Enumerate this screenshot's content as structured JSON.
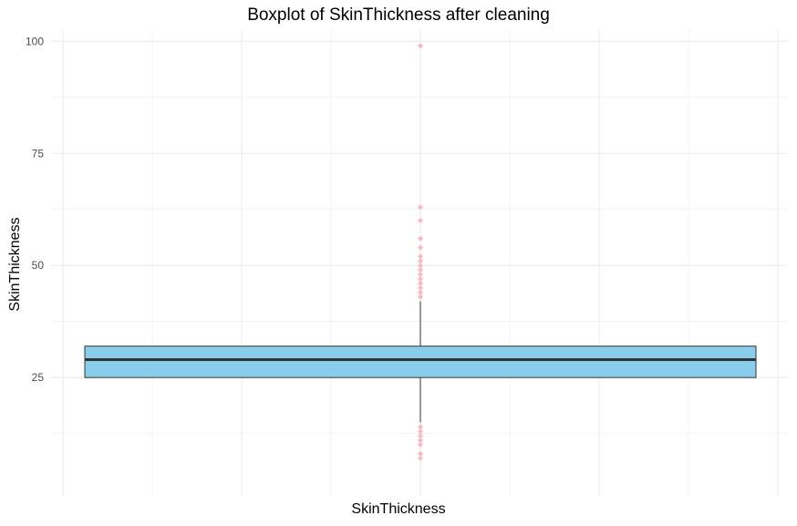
{
  "chart_data": {
    "type": "boxplot",
    "title": "Boxplot of SkinThickness after cleaning",
    "xlabel": "SkinThickness",
    "ylabel": "SkinThickness",
    "ylim": [
      -1.4,
      102.5
    ],
    "y_ticks": [
      25,
      50,
      75,
      100
    ],
    "y_tick_labels": [
      "25",
      "50",
      "75",
      "100"
    ],
    "grid": true,
    "box": {
      "q1": 25,
      "median": 29,
      "q3": 32,
      "whisker_low": 15,
      "whisker_high": 42,
      "fill": "#87CEEB",
      "outline": "#333333"
    },
    "outliers": [
      99,
      63,
      60,
      56,
      54,
      52,
      51,
      50,
      49,
      48,
      47,
      46,
      45,
      44,
      43,
      14,
      13,
      12,
      11,
      10,
      8,
      7
    ],
    "outlier_color": "#FFB6C1",
    "grid_color": "#ebebeb"
  }
}
